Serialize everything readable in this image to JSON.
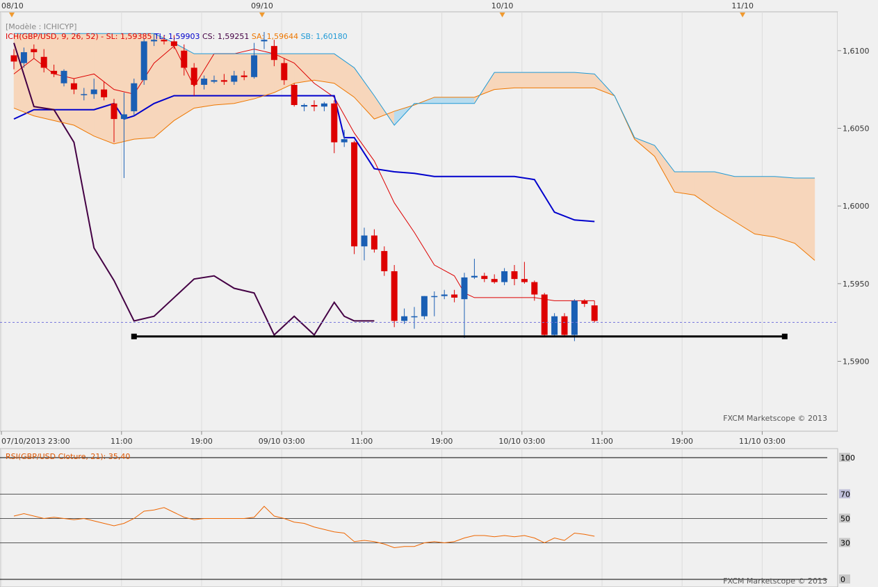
{
  "chart_data": [
    {
      "type": "candlestick",
      "title": "[Modèle : ICHICYP]",
      "legend": [
        {
          "text": "ICH(GBP/USD, 9, 26, 52) -",
          "color": "#dd0000"
        },
        {
          "text": "SL: 1,59385",
          "color": "#dd0000"
        },
        {
          "text": "TL: 1,59903",
          "color": "#0000cc"
        },
        {
          "text": "CS: 1,59251",
          "color": "#440044"
        },
        {
          "text": "SA: 1,59644",
          "color": "#ee7700"
        },
        {
          "text": "SB: 1,60180",
          "color": "#1f9ad6"
        }
      ],
      "ylim": [
        1.5855,
        1.6125
      ],
      "y_ticks": [
        "1,6100",
        "1,6050",
        "1,6000",
        "1,5950",
        "1,5900"
      ],
      "y_tick_values": [
        1.61,
        1.605,
        1.6,
        1.595,
        1.59
      ],
      "last_price": "1,59251",
      "last_price_value": 1.59251,
      "x_ticks": [
        "07/10/2013 23:00",
        "11:00",
        "19:00",
        "09/10 03:00",
        "11:00",
        "19:00",
        "10/10 03:00",
        "11:00",
        "19:00",
        "11/10 03:00"
      ],
      "x_tick_index": [
        0,
        6,
        10,
        14,
        18,
        22,
        26,
        30,
        34,
        38
      ],
      "date_markers": [
        "08/10",
        "09/10",
        "10/10",
        "11/10"
      ],
      "date_marker_index": [
        0,
        12.5,
        24.5,
        36.5
      ],
      "n_slots": 41,
      "candles": [
        {
          "i": 0,
          "o": 1.6097,
          "h": 1.6101,
          "l": 1.6088,
          "c": 1.6093
        },
        {
          "i": 0.5,
          "o": 1.6092,
          "h": 1.6102,
          "l": 1.6089,
          "c": 1.6099
        },
        {
          "i": 1,
          "o": 1.6101,
          "h": 1.6104,
          "l": 1.6095,
          "c": 1.6099
        },
        {
          "i": 1.5,
          "o": 1.6096,
          "h": 1.6101,
          "l": 1.6086,
          "c": 1.6089
        },
        {
          "i": 2,
          "o": 1.6087,
          "h": 1.6091,
          "l": 1.6083,
          "c": 1.6085
        },
        {
          "i": 2.5,
          "o": 1.6079,
          "h": 1.6088,
          "l": 1.6077,
          "c": 1.6087
        },
        {
          "i": 3,
          "o": 1.6079,
          "h": 1.6082,
          "l": 1.6072,
          "c": 1.6075
        },
        {
          "i": 3.5,
          "o": 1.6072,
          "h": 1.6076,
          "l": 1.6068,
          "c": 1.6072
        },
        {
          "i": 4,
          "o": 1.6072,
          "h": 1.6082,
          "l": 1.6069,
          "c": 1.6075
        },
        {
          "i": 4.5,
          "o": 1.6075,
          "h": 1.608,
          "l": 1.6068,
          "c": 1.607
        },
        {
          "i": 5,
          "o": 1.6066,
          "h": 1.6069,
          "l": 1.6041,
          "c": 1.6056
        },
        {
          "i": 5.5,
          "o": 1.6056,
          "h": 1.6073,
          "l": 1.6018,
          "c": 1.6059
        },
        {
          "i": 6,
          "o": 1.6061,
          "h": 1.6082,
          "l": 1.6058,
          "c": 1.6079
        },
        {
          "i": 6.5,
          "o": 1.6081,
          "h": 1.6108,
          "l": 1.6078,
          "c": 1.6106
        },
        {
          "i": 7,
          "o": 1.6106,
          "h": 1.6111,
          "l": 1.6103,
          "c": 1.6107
        },
        {
          "i": 7.5,
          "o": 1.6107,
          "h": 1.611,
          "l": 1.6104,
          "c": 1.6106
        },
        {
          "i": 8,
          "o": 1.6106,
          "h": 1.611,
          "l": 1.6101,
          "c": 1.6103
        },
        {
          "i": 8.5,
          "o": 1.61,
          "h": 1.6104,
          "l": 1.6084,
          "c": 1.6089
        },
        {
          "i": 9,
          "o": 1.6089,
          "h": 1.6092,
          "l": 1.6071,
          "c": 1.6078
        },
        {
          "i": 9.5,
          "o": 1.6078,
          "h": 1.6084,
          "l": 1.6075,
          "c": 1.6082
        },
        {
          "i": 10,
          "o": 1.608,
          "h": 1.6084,
          "l": 1.6079,
          "c": 1.6081
        },
        {
          "i": 10.5,
          "o": 1.6081,
          "h": 1.6085,
          "l": 1.6078,
          "c": 1.608
        },
        {
          "i": 11,
          "o": 1.608,
          "h": 1.6087,
          "l": 1.6078,
          "c": 1.6084
        },
        {
          "i": 11.5,
          "o": 1.6084,
          "h": 1.6087,
          "l": 1.6081,
          "c": 1.6083
        },
        {
          "i": 12,
          "o": 1.6083,
          "h": 1.6105,
          "l": 1.6082,
          "c": 1.6097
        },
        {
          "i": 12.5,
          "o": 1.6106,
          "h": 1.6112,
          "l": 1.6101,
          "c": 1.6107
        },
        {
          "i": 13,
          "o": 1.6103,
          "h": 1.6107,
          "l": 1.609,
          "c": 1.6094
        },
        {
          "i": 13.5,
          "o": 1.6092,
          "h": 1.6095,
          "l": 1.6078,
          "c": 1.6081
        },
        {
          "i": 14,
          "o": 1.6078,
          "h": 1.6079,
          "l": 1.6064,
          "c": 1.6065
        },
        {
          "i": 14.5,
          "o": 1.6064,
          "h": 1.6066,
          "l": 1.6061,
          "c": 1.6065
        },
        {
          "i": 15,
          "o": 1.6065,
          "h": 1.6068,
          "l": 1.6061,
          "c": 1.6064
        },
        {
          "i": 15.5,
          "o": 1.6064,
          "h": 1.6067,
          "l": 1.6061,
          "c": 1.6066
        },
        {
          "i": 16,
          "o": 1.6066,
          "h": 1.6068,
          "l": 1.6034,
          "c": 1.6041
        },
        {
          "i": 16.5,
          "o": 1.6041,
          "h": 1.6049,
          "l": 1.6038,
          "c": 1.6043
        },
        {
          "i": 17,
          "o": 1.6041,
          "h": 1.6042,
          "l": 1.5969,
          "c": 1.5974
        },
        {
          "i": 17.5,
          "o": 1.5974,
          "h": 1.5986,
          "l": 1.5965,
          "c": 1.5981
        },
        {
          "i": 18,
          "o": 1.5981,
          "h": 1.5985,
          "l": 1.597,
          "c": 1.5972
        },
        {
          "i": 18.5,
          "o": 1.5971,
          "h": 1.5974,
          "l": 1.5955,
          "c": 1.5958
        },
        {
          "i": 19,
          "o": 1.5958,
          "h": 1.5962,
          "l": 1.5922,
          "c": 1.5926
        },
        {
          "i": 19.5,
          "o": 1.5926,
          "h": 1.5934,
          "l": 1.5924,
          "c": 1.5929
        },
        {
          "i": 20,
          "o": 1.5929,
          "h": 1.5935,
          "l": 1.5921,
          "c": 1.5929
        },
        {
          "i": 20.5,
          "o": 1.5929,
          "h": 1.5942,
          "l": 1.5927,
          "c": 1.5942
        },
        {
          "i": 21,
          "o": 1.5942,
          "h": 1.5945,
          "l": 1.5929,
          "c": 1.5942
        },
        {
          "i": 21.5,
          "o": 1.5942,
          "h": 1.5946,
          "l": 1.594,
          "c": 1.5943
        },
        {
          "i": 22,
          "o": 1.5943,
          "h": 1.5946,
          "l": 1.5938,
          "c": 1.5941
        },
        {
          "i": 22.5,
          "o": 1.594,
          "h": 1.5957,
          "l": 1.5915,
          "c": 1.5954
        },
        {
          "i": 23,
          "o": 1.5954,
          "h": 1.5966,
          "l": 1.5953,
          "c": 1.5955
        },
        {
          "i": 23.5,
          "o": 1.5955,
          "h": 1.5957,
          "l": 1.5951,
          "c": 1.5953
        },
        {
          "i": 24,
          "o": 1.5953,
          "h": 1.5956,
          "l": 1.595,
          "c": 1.5951
        },
        {
          "i": 24.5,
          "o": 1.5951,
          "h": 1.596,
          "l": 1.5949,
          "c": 1.5958
        },
        {
          "i": 25,
          "o": 1.5958,
          "h": 1.5962,
          "l": 1.5949,
          "c": 1.5953
        },
        {
          "i": 25.5,
          "o": 1.5953,
          "h": 1.5964,
          "l": 1.595,
          "c": 1.5951
        },
        {
          "i": 26,
          "o": 1.5951,
          "h": 1.5952,
          "l": 1.5939,
          "c": 1.5943
        },
        {
          "i": 26.5,
          "o": 1.5943,
          "h": 1.5944,
          "l": 1.5916,
          "c": 1.5917
        },
        {
          "i": 27,
          "o": 1.5917,
          "h": 1.5931,
          "l": 1.5916,
          "c": 1.5929
        },
        {
          "i": 27.5,
          "o": 1.5929,
          "h": 1.5931,
          "l": 1.5916,
          "c": 1.5917
        },
        {
          "i": 28,
          "o": 1.5917,
          "h": 1.594,
          "l": 1.5913,
          "c": 1.5939
        },
        {
          "i": 28.5,
          "o": 1.5939,
          "h": 1.594,
          "l": 1.5935,
          "c": 1.5937
        },
        {
          "i": 29,
          "o": 1.5936,
          "h": 1.5939,
          "l": 1.5925,
          "c": 1.5926
        }
      ],
      "series": [
        {
          "name": "SL",
          "color": "#dd0000",
          "x": [
            0,
            1,
            2,
            3,
            4,
            5,
            6,
            7,
            8,
            9,
            10,
            11,
            12,
            13,
            14,
            15,
            16,
            17,
            18,
            19,
            20,
            21,
            22,
            22.5,
            23,
            24,
            25,
            26,
            27,
            28,
            29
          ],
          "values": [
            1.6085,
            1.6095,
            1.6085,
            1.6082,
            1.6085,
            1.6075,
            1.6072,
            1.6092,
            1.6103,
            1.6077,
            1.6098,
            1.6098,
            1.6101,
            1.6098,
            1.6092,
            1.6079,
            1.607,
            1.6047,
            1.6029,
            1.6002,
            1.5983,
            1.5962,
            1.5955,
            1.5944,
            1.5941,
            1.5941,
            1.5941,
            1.5941,
            1.5939,
            1.5939,
            1.5939
          ]
        },
        {
          "name": "TL",
          "color": "#0000cc",
          "x": [
            0,
            1,
            2,
            3,
            4,
            5,
            5.5,
            6,
            7,
            8,
            9,
            10,
            11,
            12,
            13,
            14,
            15,
            16,
            16.5,
            17,
            18,
            19,
            20,
            21,
            22,
            23,
            24,
            25,
            26,
            27,
            28,
            29
          ],
          "values": [
            1.6056,
            1.6062,
            1.6062,
            1.6062,
            1.6062,
            1.6066,
            1.6056,
            1.6058,
            1.6066,
            1.6071,
            1.6071,
            1.6071,
            1.6071,
            1.6071,
            1.6071,
            1.6071,
            1.6071,
            1.6071,
            1.6044,
            1.6044,
            1.6024,
            1.6022,
            1.6021,
            1.6019,
            1.6019,
            1.6019,
            1.6019,
            1.6019,
            1.6017,
            1.5996,
            1.5991,
            1.599
          ]
        },
        {
          "name": "CS",
          "color": "#440044",
          "x": [
            0,
            1,
            2,
            3,
            4,
            5,
            6,
            7,
            8,
            9,
            10,
            11,
            12,
            13,
            14,
            15,
            16,
            16.5,
            17,
            18
          ],
          "values": [
            1.6105,
            1.6064,
            1.6062,
            1.6041,
            1.5973,
            1.5952,
            1.5926,
            1.5929,
            1.5941,
            1.5953,
            1.5955,
            1.5947,
            1.5944,
            1.5917,
            1.5929,
            1.5917,
            1.5938,
            1.5929,
            1.5926,
            1.5926
          ]
        },
        {
          "name": "SA",
          "color": "#ee7700",
          "x": [
            0,
            1,
            2,
            3,
            4,
            5,
            6,
            7,
            8,
            9,
            10,
            11,
            12,
            13,
            14,
            15,
            16,
            17,
            18,
            19,
            20,
            21,
            22,
            23,
            24,
            25,
            26,
            27,
            28,
            29,
            30,
            31,
            32,
            33,
            34,
            35,
            36,
            37,
            38,
            39,
            40
          ],
          "values": [
            1.6063,
            1.6058,
            1.6055,
            1.6052,
            1.6045,
            1.604,
            1.6043,
            1.6044,
            1.6055,
            1.6063,
            1.6065,
            1.6066,
            1.6069,
            1.6073,
            1.6079,
            1.6081,
            1.6079,
            1.607,
            1.6056,
            1.6061,
            1.6065,
            1.607,
            1.607,
            1.607,
            1.6075,
            1.6076,
            1.6076,
            1.6076,
            1.6076,
            1.6076,
            1.6071,
            1.6043,
            1.6032,
            1.6009,
            1.6007,
            1.5998,
            1.599,
            1.5982,
            1.598,
            1.5976,
            1.5965
          ]
        },
        {
          "name": "SB",
          "color": "#1f9ad6",
          "x": [
            0,
            1,
            2,
            3,
            4,
            5,
            6,
            7,
            8,
            9,
            10,
            11,
            12,
            13,
            14,
            15,
            16,
            17,
            18,
            19,
            20,
            21,
            22,
            23,
            24,
            25,
            26,
            27,
            28,
            29,
            30,
            31,
            32,
            33,
            34,
            35,
            36,
            37,
            38,
            39,
            40
          ],
          "values": [
            1.6111,
            1.6111,
            1.6111,
            1.6111,
            1.6111,
            1.6111,
            1.6111,
            1.6111,
            1.6105,
            1.6098,
            1.6098,
            1.6098,
            1.6098,
            1.6098,
            1.6098,
            1.6098,
            1.6098,
            1.6089,
            1.6071,
            1.6052,
            1.6066,
            1.6066,
            1.6066,
            1.6066,
            1.6086,
            1.6086,
            1.6086,
            1.6086,
            1.6086,
            1.6085,
            1.6071,
            1.6044,
            1.6039,
            1.6022,
            1.6022,
            1.6022,
            1.6019,
            1.6019,
            1.6019,
            1.6018,
            1.6018
          ]
        }
      ],
      "hline": {
        "value": 1.5916,
        "x_start": 6,
        "x_end": 38.5
      },
      "watermark": "FXCM Marketscope © 2013"
    },
    {
      "type": "line",
      "title": "RSI(GBP/USD Cloture, 21): 35,40",
      "ylim": [
        0,
        100
      ],
      "levels": [
        100,
        70,
        50,
        30,
        0
      ],
      "level_labels": [
        "100",
        "70",
        "50",
        "30",
        "0"
      ],
      "series": [
        {
          "name": "RSI",
          "color": "#ee6600",
          "x": [
            0,
            0.5,
            1,
            1.5,
            2,
            2.5,
            3,
            3.5,
            4,
            4.5,
            5,
            5.5,
            6,
            6.5,
            7,
            7.5,
            8,
            8.5,
            9,
            9.5,
            10,
            10.5,
            11,
            11.5,
            12,
            12.5,
            13,
            13.5,
            14,
            14.5,
            15,
            15.5,
            16,
            16.5,
            17,
            17.5,
            18,
            18.5,
            19,
            19.5,
            20,
            20.5,
            21,
            21.5,
            22,
            22.5,
            23,
            23.5,
            24,
            24.5,
            25,
            25.5,
            26,
            26.5,
            27,
            27.5,
            28,
            28.5,
            29
          ],
          "values": [
            52,
            54,
            52,
            50,
            51,
            50,
            49,
            50,
            48,
            46,
            44,
            46,
            50,
            56,
            57,
            59,
            55,
            51,
            49,
            50,
            50,
            50,
            50,
            50,
            51,
            60,
            52,
            50,
            47,
            46,
            43,
            41,
            39,
            38,
            31,
            32,
            31,
            29,
            26,
            27,
            27,
            30,
            31,
            30,
            31,
            34,
            36,
            36,
            35,
            36,
            35,
            36,
            34,
            30,
            34,
            32,
            38,
            37,
            35.4
          ]
        }
      ],
      "watermark": "FXCM Marketscope © 2013"
    }
  ]
}
